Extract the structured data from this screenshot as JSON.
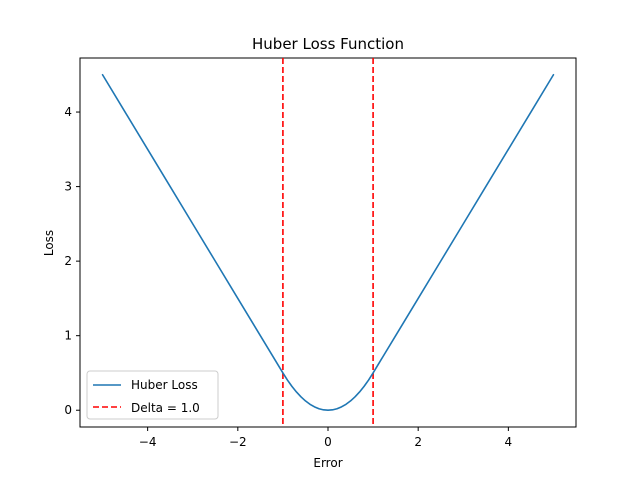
{
  "chart_data": {
    "type": "line",
    "title": "Huber Loss Function",
    "xlabel": "Error",
    "ylabel": "Loss",
    "xlim": [
      -5.5,
      5.5
    ],
    "ylim": [
      -0.225,
      4.725
    ],
    "xticks": [
      -4,
      -2,
      0,
      2,
      4
    ],
    "xtick_labels": [
      "−4",
      "−2",
      "0",
      "2",
      "4"
    ],
    "yticks": [
      0,
      1,
      2,
      3,
      4
    ],
    "ytick_labels": [
      "0",
      "1",
      "2",
      "3",
      "4"
    ],
    "grid": false,
    "legend_position": "lower-left",
    "series": [
      {
        "name": "Huber Loss",
        "color": "#1f77b4",
        "style": "solid",
        "delta": 1.0,
        "x": [
          -5.0,
          -4.5,
          -4.0,
          -3.5,
          -3.0,
          -2.5,
          -2.0,
          -1.5,
          -1.0,
          -0.9,
          -0.8,
          -0.7,
          -0.6,
          -0.5,
          -0.4,
          -0.3,
          -0.2,
          -0.1,
          0.0,
          0.1,
          0.2,
          0.3,
          0.4,
          0.5,
          0.6,
          0.7,
          0.8,
          0.9,
          1.0,
          1.5,
          2.0,
          2.5,
          3.0,
          3.5,
          4.0,
          4.5,
          5.0
        ],
        "y": [
          4.5,
          4.0,
          3.5,
          3.0,
          2.5,
          2.0,
          1.5,
          1.0,
          0.5,
          0.405,
          0.32,
          0.245,
          0.18,
          0.125,
          0.08,
          0.045,
          0.02,
          0.005,
          0.0,
          0.005,
          0.02,
          0.045,
          0.08,
          0.125,
          0.18,
          0.245,
          0.32,
          0.405,
          0.5,
          1.0,
          1.5,
          2.0,
          2.5,
          3.0,
          3.5,
          4.0,
          4.5
        ]
      },
      {
        "name": "Delta = 1.0",
        "color": "#ff0000",
        "style": "dashed",
        "vlines_x": [
          -1.0,
          1.0
        ]
      }
    ]
  }
}
